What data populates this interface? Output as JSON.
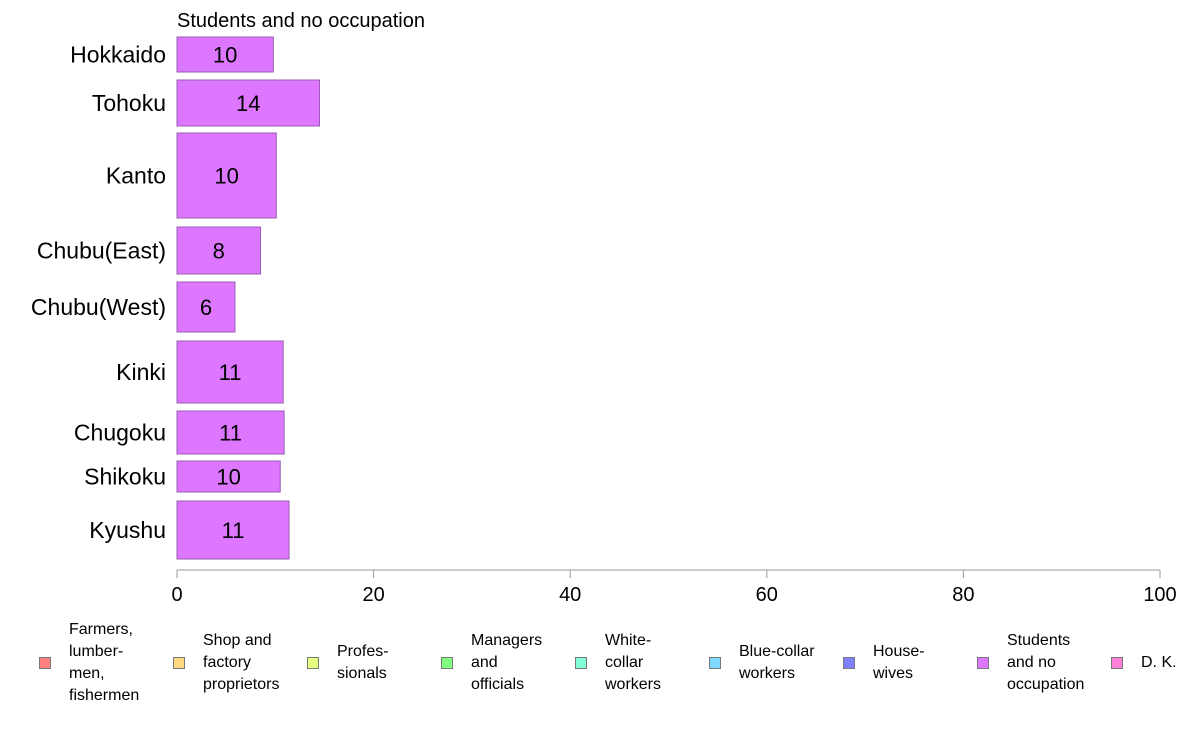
{
  "chart_data": {
    "type": "bar",
    "orientation": "horizontal",
    "title": "Students and no occupation",
    "categories": [
      "Hokkaido",
      "Tohoku",
      "Kanto",
      "Chubu(East)",
      "Chubu(West)",
      "Kinki",
      "Chugoku",
      "Shikoku",
      "Kyushu"
    ],
    "values": [
      10,
      14,
      10,
      8,
      6,
      11,
      11,
      10,
      11
    ],
    "bar_lengths": [
      9.8,
      14.5,
      10.1,
      8.5,
      5.9,
      10.8,
      10.9,
      10.5,
      11.4
    ],
    "bar_color": "#dd77ff",
    "bar_border_color": "#9a5cb3",
    "xlim": [
      0,
      100
    ],
    "xticks": [
      0,
      20,
      40,
      60,
      80,
      100
    ],
    "xlabel": "",
    "ylabel": "",
    "grid": false,
    "legend_placement": "bottom"
  },
  "legend": [
    {
      "label": "Farmers,\nlumber-\nmen,\nfishermen",
      "color": "#ff8080"
    },
    {
      "label": "Shop and\nfactory\nproprietors",
      "color": "#ffd980"
    },
    {
      "label": "Profes-\nsionals",
      "color": "#e5ff80"
    },
    {
      "label": "Managers\nand\nofficials",
      "color": "#80ff80"
    },
    {
      "label": "White-\ncollar\nworkers",
      "color": "#80ffd9"
    },
    {
      "label": "Blue-collar\nworkers",
      "color": "#80d9ff"
    },
    {
      "label": "House-\nwives",
      "color": "#8080ff"
    },
    {
      "label": "Students\nand no\noccupation",
      "color": "#dd77ff"
    },
    {
      "label": "D. K.",
      "color": "#ff80d9"
    }
  ]
}
